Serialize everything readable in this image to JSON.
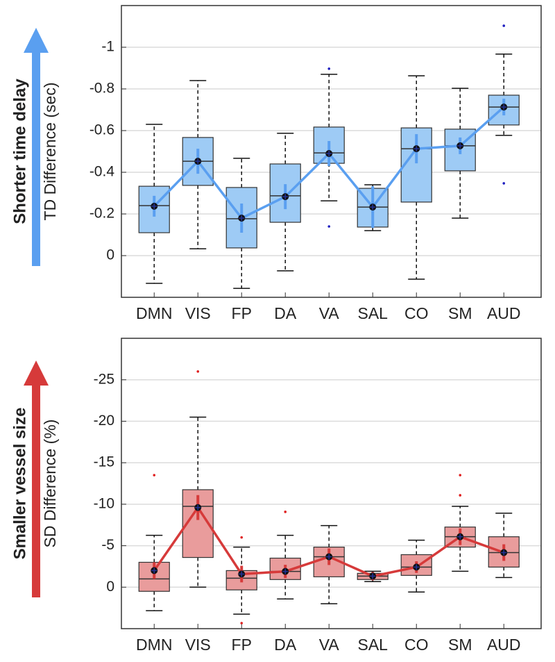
{
  "chart_data": [
    {
      "type": "box",
      "side_label": "Shorter time delay",
      "ylabel": "TD Difference (sec)",
      "categories": [
        "DMN",
        "VIS",
        "FP",
        "DA",
        "VA",
        "SAL",
        "CO",
        "SM",
        "AUD"
      ],
      "whisker_high": [
        -0.63,
        -0.84,
        -0.467,
        -0.587,
        -0.87,
        -0.34,
        -0.863,
        -0.803,
        -0.967
      ],
      "q3": [
        -0.333,
        -0.567,
        -0.327,
        -0.44,
        -0.617,
        -0.323,
        -0.613,
        -0.607,
        -0.77
      ],
      "median": [
        -0.24,
        -0.453,
        -0.177,
        -0.287,
        -0.493,
        -0.233,
        -0.513,
        -0.527,
        -0.713
      ],
      "q1": [
        -0.11,
        -0.337,
        -0.037,
        -0.16,
        -0.443,
        -0.137,
        -0.257,
        -0.407,
        -0.627
      ],
      "whisker_low": [
        0.133,
        -0.033,
        0.157,
        0.073,
        -0.263,
        -0.12,
        0.113,
        -0.18,
        -0.577
      ],
      "mean": [
        -0.237,
        -0.453,
        -0.18,
        -0.283,
        -0.49,
        -0.233,
        -0.513,
        -0.527,
        -0.713
      ],
      "ci": [
        0.05,
        0.06,
        0.07,
        0.06,
        0.06,
        0.1,
        0.07,
        0.04,
        0.04
      ],
      "outliers": [
        [],
        [],
        [],
        [],
        [
          -0.897,
          -0.14
        ],
        [],
        [],
        [],
        [
          -1.103,
          -0.347
        ]
      ],
      "ylim": [
        -1.2,
        0.2
      ],
      "y_reversed": true,
      "yticks": [
        -1,
        -0.8,
        -0.6,
        -0.4,
        -0.2,
        0
      ],
      "grid": true,
      "box_color": "#9ecbf5",
      "line_color": "#5a9ff0",
      "outlier_color": "#2020c0",
      "arrow_color": "#5a9ff0"
    },
    {
      "type": "box",
      "side_label": "Smaller vessel size",
      "ylabel": "SD Difference (%)",
      "categories": [
        "DMN",
        "VIS",
        "FP",
        "DA",
        "VA",
        "SAL",
        "CO",
        "SM",
        "AUD"
      ],
      "whisker_high": [
        -6.25,
        -20.5,
        -4.83,
        -6.25,
        -7.42,
        -1.92,
        -5.67,
        -9.75,
        -8.92
      ],
      "q3": [
        -3,
        -11.75,
        -2,
        -3.5,
        -4.83,
        -1.67,
        -3.92,
        -7.25,
        -6.08
      ],
      "median": [
        -1,
        -9.75,
        -1.08,
        -1.9,
        -3.67,
        -1.33,
        -2.42,
        -6.08,
        -4.17
      ],
      "q1": [
        0.5,
        -3.58,
        0.33,
        -0.92,
        -1.25,
        -0.92,
        -1.42,
        -4.83,
        -2.42
      ],
      "whisker_low": [
        2.83,
        0,
        3.25,
        1.42,
        2,
        -0.67,
        0.58,
        -1.92,
        -1.17
      ],
      "mean": [
        -2,
        -9.6,
        -1.58,
        -1.9,
        -3.67,
        -1.33,
        -2.42,
        -6.08,
        -4.17
      ],
      "ci": [
        1,
        1.5,
        1,
        0.8,
        1,
        0.5,
        0.7,
        1,
        1
      ],
      "outliers": [
        [
          -13.5
        ],
        [
          -26
        ],
        [
          -6,
          4.33
        ],
        [
          -9.08
        ],
        [],
        [],
        [],
        [
          -13.5,
          -11.08
        ],
        []
      ],
      "ylim": [
        -30,
        5
      ],
      "y_reversed": true,
      "yticks": [
        -25,
        -20,
        -15,
        -10,
        -5,
        0
      ],
      "grid": true,
      "box_color": "#e99c9c",
      "line_color": "#d63a3a",
      "outlier_color": "#e02020",
      "arrow_color": "#d63a3a"
    }
  ]
}
